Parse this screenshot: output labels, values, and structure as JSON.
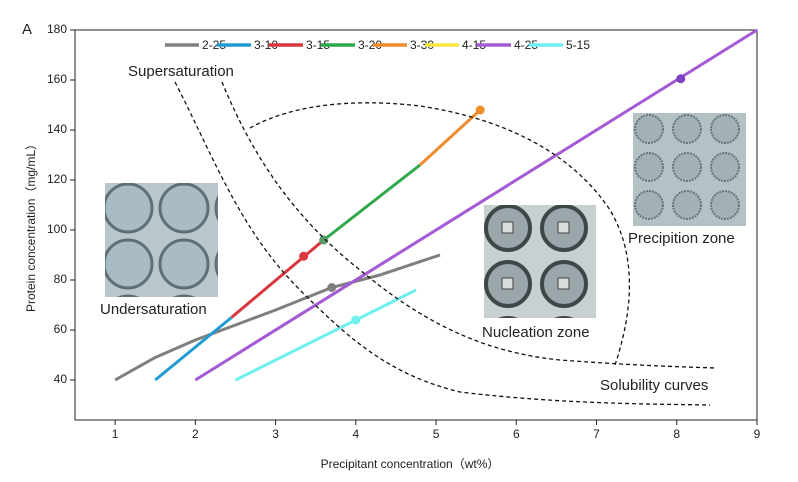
{
  "chart_data": {
    "type": "line",
    "x_label": "Precipitant concentration（wt%）",
    "y_label": "Protein concentration（mg/mL）",
    "panel_label": "A",
    "annotations": [
      "Supersaturation",
      "Undersaturation",
      "Nucleation zone",
      "Precipition zone",
      "Solubility curves"
    ],
    "xlim": [
      0.5,
      9
    ],
    "xticks": [
      1,
      2,
      3,
      4,
      5,
      6,
      7,
      8,
      9
    ],
    "ylim": [
      24,
      180
    ],
    "yticks": [
      40,
      60,
      80,
      100,
      120,
      140,
      160,
      180
    ],
    "series": [
      {
        "name": "2-25",
        "color": "#7f7f7f",
        "x": [
          1,
          1.5,
          2,
          2.5,
          3,
          3.7,
          4.3,
          5.05
        ],
        "values": [
          40,
          49,
          56,
          62,
          68,
          77,
          82,
          90
        ]
      },
      {
        "name": "3-10",
        "color": "#1f9bd4",
        "x": [
          1.5,
          2.45
        ],
        "values": [
          40,
          65
        ]
      },
      {
        "name": "3-15",
        "color": "#d9363e",
        "x": [
          2.45,
          3.6
        ],
        "values": [
          65,
          96
        ]
      },
      {
        "name": "3-20",
        "color": "#2ea84a",
        "x": [
          3.6,
          4.8
        ],
        "values": [
          96,
          126
        ]
      },
      {
        "name": "3-30",
        "color": "#ee8c2e",
        "x": [
          4.8,
          5.55
        ],
        "values": [
          126,
          148
        ]
      },
      {
        "name": "4-15",
        "color": "#f5e642",
        "x": [],
        "values": []
      },
      {
        "name": "4-25",
        "color": "#a35ad4",
        "x": [
          2,
          9
        ],
        "values": [
          40,
          180
        ]
      },
      {
        "name": "5-15",
        "color": "#6ff0f0",
        "x": [
          2.5,
          4.75
        ],
        "values": [
          40,
          76
        ]
      }
    ],
    "markers": [
      {
        "x": 3.7,
        "y": 77,
        "color": "#7f7f7f"
      },
      {
        "x": 3.35,
        "y": 89.5,
        "color": "#d9363e"
      },
      {
        "x": 3.6,
        "y": 96,
        "color": "#5a9a6a"
      },
      {
        "x": 5.55,
        "y": 148,
        "color": "#ee8c2e"
      },
      {
        "x": 8.05,
        "y": 160.5,
        "color": "#7b3fc0"
      },
      {
        "x": 4,
        "y": 64,
        "color": "#6ff0f0"
      }
    ]
  }
}
